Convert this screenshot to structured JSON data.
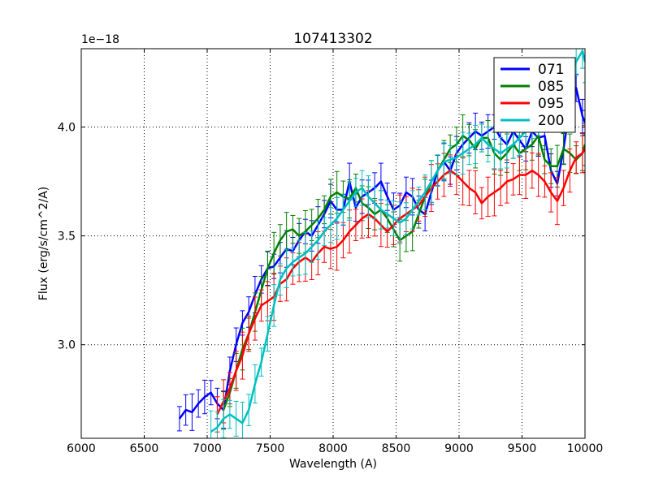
{
  "chart_data": {
    "type": "line",
    "title": "107413302",
    "xlabel": "Wavelength (A)",
    "ylabel": "Flux (erg/s/cm^2/A)",
    "offset_label": "1e−18",
    "xlim": [
      6000,
      10000
    ],
    "ylim": [
      2.57,
      4.36
    ],
    "xticks": [
      6000,
      6500,
      7000,
      7500,
      8000,
      8500,
      9000,
      9500,
      10000
    ],
    "yticks": [
      3.0,
      3.5,
      4.0
    ],
    "ytick_labels": [
      "3.0",
      "3.5",
      "4.0"
    ],
    "grid": true,
    "legend_position": "top-right",
    "series": [
      {
        "name": "071",
        "color": "#0000ff",
        "err": 0.07,
        "x": [
          6780,
          6830,
          6880,
          6930,
          6980,
          7030,
          7080,
          7130,
          7180,
          7230,
          7280,
          7330,
          7380,
          7430,
          7480,
          7530,
          7580,
          7630,
          7680,
          7730,
          7780,
          7830,
          7880,
          7930,
          7980,
          8030,
          8080,
          8130,
          8180,
          8230,
          8280,
          8330,
          8380,
          8430,
          8480,
          8530,
          8580,
          8630,
          8680,
          8730,
          8780,
          8830,
          8880,
          8930,
          8980,
          9030,
          9080,
          9130,
          9180,
          9230,
          9280,
          9330,
          9380,
          9430,
          9480,
          9530,
          9580,
          9630,
          9680,
          9730,
          9780,
          9830,
          9880,
          9930,
          9980,
          10000
        ],
        "y": [
          2.66,
          2.7,
          2.69,
          2.73,
          2.76,
          2.78,
          2.73,
          2.7,
          2.88,
          3.0,
          3.1,
          3.15,
          3.23,
          3.3,
          3.35,
          3.36,
          3.4,
          3.44,
          3.43,
          3.48,
          3.52,
          3.5,
          3.55,
          3.6,
          3.66,
          3.62,
          3.62,
          3.75,
          3.63,
          3.68,
          3.7,
          3.72,
          3.75,
          3.68,
          3.62,
          3.64,
          3.7,
          3.68,
          3.62,
          3.6,
          3.7,
          3.8,
          3.84,
          3.8,
          3.88,
          3.92,
          3.95,
          3.98,
          3.96,
          3.98,
          4.0,
          3.95,
          3.92,
          3.98,
          3.94,
          3.9,
          3.98,
          3.95,
          3.96,
          3.8,
          3.74,
          3.9,
          4.1,
          4.18,
          4.05,
          4.02
        ]
      },
      {
        "name": "085",
        "color": "#008000",
        "err": 0.08,
        "x": [
          7130,
          7180,
          7230,
          7280,
          7330,
          7380,
          7430,
          7480,
          7530,
          7580,
          7630,
          7680,
          7730,
          7780,
          7830,
          7880,
          7930,
          7980,
          8030,
          8080,
          8130,
          8180,
          8230,
          8280,
          8330,
          8380,
          8430,
          8480,
          8530,
          8580,
          8630,
          8680,
          8730,
          8780,
          8830,
          8880,
          8930,
          8980,
          9030,
          9080,
          9130,
          9180,
          9230,
          9280,
          9330,
          9380,
          9430,
          9480,
          9530,
          9580,
          9630,
          9680,
          9730,
          9780,
          9830,
          9880,
          9930,
          9980,
          10000
        ],
        "y": [
          2.7,
          2.78,
          2.88,
          2.98,
          3.05,
          3.15,
          3.25,
          3.35,
          3.42,
          3.48,
          3.52,
          3.53,
          3.5,
          3.52,
          3.55,
          3.58,
          3.62,
          3.68,
          3.7,
          3.68,
          3.67,
          3.72,
          3.65,
          3.63,
          3.6,
          3.62,
          3.58,
          3.53,
          3.48,
          3.5,
          3.52,
          3.6,
          3.68,
          3.75,
          3.8,
          3.85,
          3.9,
          3.92,
          3.96,
          3.94,
          3.9,
          3.95,
          3.95,
          3.88,
          3.85,
          3.88,
          3.92,
          3.88,
          3.9,
          3.92,
          3.96,
          3.85,
          3.82,
          3.82,
          3.9,
          3.88,
          3.85,
          3.88,
          3.92
        ]
      },
      {
        "name": "095",
        "color": "#ff0000",
        "err": 0.09,
        "x": [
          7080,
          7130,
          7180,
          7230,
          7280,
          7330,
          7380,
          7430,
          7480,
          7530,
          7580,
          7630,
          7680,
          7730,
          7780,
          7830,
          7880,
          7930,
          7980,
          8030,
          8080,
          8130,
          8180,
          8230,
          8280,
          8330,
          8380,
          8430,
          8480,
          8530,
          8580,
          8630,
          8680,
          8730,
          8780,
          8830,
          8880,
          8930,
          8980,
          9030,
          9080,
          9130,
          9180,
          9230,
          9280,
          9330,
          9380,
          9430,
          9480,
          9530,
          9580,
          9630,
          9680,
          9730,
          9780,
          9830,
          9880,
          9930,
          9980,
          10000
        ],
        "y": [
          2.68,
          2.74,
          2.8,
          2.88,
          2.95,
          3.05,
          3.12,
          3.18,
          3.2,
          3.22,
          3.28,
          3.3,
          3.35,
          3.38,
          3.4,
          3.38,
          3.42,
          3.45,
          3.44,
          3.45,
          3.48,
          3.52,
          3.55,
          3.58,
          3.6,
          3.58,
          3.55,
          3.52,
          3.55,
          3.58,
          3.6,
          3.62,
          3.64,
          3.68,
          3.72,
          3.75,
          3.78,
          3.8,
          3.78,
          3.75,
          3.72,
          3.7,
          3.65,
          3.68,
          3.7,
          3.72,
          3.75,
          3.76,
          3.78,
          3.78,
          3.8,
          3.78,
          3.75,
          3.7,
          3.66,
          3.72,
          3.8,
          3.86,
          3.88,
          3.9
        ]
      },
      {
        "name": "200",
        "color": "#00bfbf",
        "err": 0.08,
        "x": [
          7030,
          7080,
          7130,
          7180,
          7230,
          7280,
          7330,
          7380,
          7430,
          7480,
          7530,
          7580,
          7630,
          7680,
          7730,
          7780,
          7830,
          7880,
          7930,
          7980,
          8030,
          8080,
          8130,
          8180,
          8230,
          8280,
          8330,
          8380,
          8430,
          8480,
          8530,
          8580,
          8630,
          8680,
          8730,
          8780,
          8830,
          8880,
          8930,
          8980,
          9030,
          9080,
          9130,
          9180,
          9230,
          9280,
          9330,
          9380,
          9430,
          9480,
          9530,
          9580,
          9630,
          9680,
          9730,
          9780,
          9830,
          9880,
          9930,
          9980,
          10000
        ],
        "y": [
          2.6,
          2.62,
          2.66,
          2.68,
          2.66,
          2.64,
          2.7,
          2.82,
          2.92,
          3.05,
          3.18,
          3.3,
          3.35,
          3.38,
          3.4,
          3.42,
          3.45,
          3.48,
          3.52,
          3.55,
          3.58,
          3.62,
          3.66,
          3.7,
          3.72,
          3.68,
          3.65,
          3.62,
          3.6,
          3.58,
          3.56,
          3.58,
          3.62,
          3.66,
          3.7,
          3.75,
          3.8,
          3.84,
          3.85,
          3.86,
          3.88,
          3.9,
          3.92,
          3.95,
          3.92,
          3.9,
          3.88,
          3.9,
          3.92,
          3.95,
          3.98,
          4.02,
          4.05,
          4.08,
          4.1,
          4.14,
          4.18,
          4.22,
          4.3,
          4.35,
          4.3
        ]
      }
    ]
  }
}
